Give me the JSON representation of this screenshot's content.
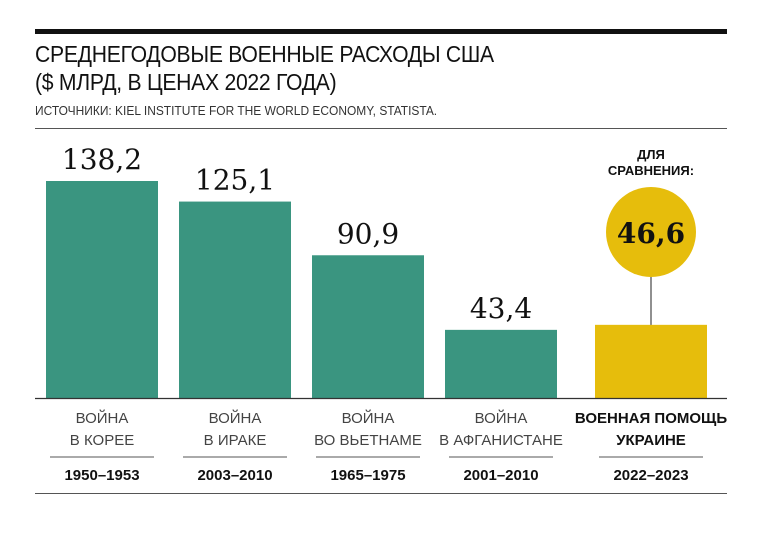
{
  "chart_data": {
    "type": "bar",
    "title": "СРЕДНЕГОДОВЫЕ ВОЕННЫЕ РАСХОДЫ США",
    "subtitle": "($ МЛРД, В ЦЕНАХ 2022 ГОДА)",
    "source": "ИСТОЧНИКИ: KIEL INSTITUTE FOR THE WORLD ECONOMY, STATISTA.",
    "categories": [
      {
        "line1": "ВОЙНА",
        "line2": "В КОРЕЕ",
        "years": "1950–1953"
      },
      {
        "line1": "ВОЙНА",
        "line2": "В ИРАКЕ",
        "years": "2003–2010"
      },
      {
        "line1": "ВОЙНА",
        "line2": "ВО ВЬЕТНАМЕ",
        "years": "1965–1975"
      },
      {
        "line1": "ВОЙНА",
        "line2": "В АФГАНИСТАНЕ",
        "years": "2001–2010"
      },
      {
        "line1": "ВОЕННАЯ ПОМОЩЬ",
        "line2": "УКРАИНЕ",
        "years": "2022–2023"
      }
    ],
    "values": [
      138.2,
      125.1,
      90.9,
      43.4,
      46.6
    ],
    "value_labels": [
      "138,2",
      "125,1",
      "90,9",
      "43,4",
      "46,6"
    ],
    "highlight_index": 4,
    "comparison_label": [
      "ДЛЯ",
      "СРАВНЕНИЯ:"
    ],
    "colors": {
      "bar": "#3a9580",
      "highlight": "#e6bd0c"
    },
    "ylim": [
      0,
      140
    ],
    "grid": false
  }
}
